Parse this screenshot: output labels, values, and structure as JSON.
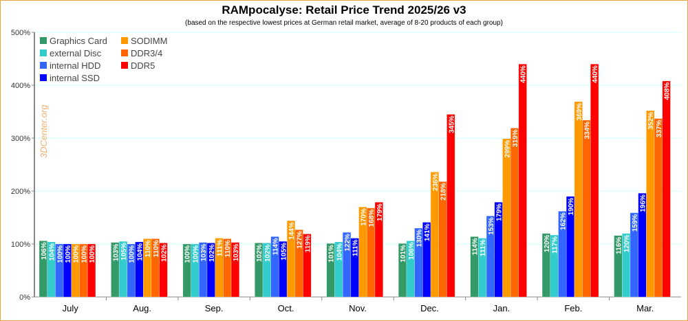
{
  "chart_data": {
    "type": "bar",
    "title": "RAMpocalyse: Retail Price Trend 2025/26 v3",
    "subtitle": "(based on the respective lowest prices at German retail market, average of 8-20 products of each group)",
    "watermark": "3DCenter.org",
    "categories": [
      "July",
      "Aug.",
      "Sep.",
      "Oct.",
      "Nov.",
      "Dec.",
      "Jan.",
      "Feb.",
      "Mar."
    ],
    "ylim": [
      0,
      500
    ],
    "yticks": [
      "0%",
      "100%",
      "200%",
      "300%",
      "400%",
      "500%"
    ],
    "grid": true,
    "legend_position": "top-left",
    "series": [
      {
        "name": "Graphics Card",
        "color": "#339966",
        "values": [
          106,
          103,
          100,
          102,
          101,
          101,
          114,
          120,
          116
        ]
      },
      {
        "name": "external Disc",
        "color": "#33CCCC",
        "values": [
          104,
          105,
          100,
          102,
          104,
          106,
          111,
          117,
          120
        ]
      },
      {
        "name": "internal HDD",
        "color": "#3366FF",
        "values": [
          100,
          100,
          103,
          114,
          122,
          130,
          153,
          162,
          159
        ]
      },
      {
        "name": "internal SSD",
        "color": "#0000FF",
        "values": [
          100,
          104,
          102,
          105,
          111,
          141,
          179,
          190,
          196
        ]
      },
      {
        "name": "SODIMM",
        "color": "#FF9900",
        "values": [
          100,
          110,
          111,
          144,
          170,
          236,
          299,
          369,
          352
        ]
      },
      {
        "name": "DDR3/4",
        "color": "#FF6600",
        "values": [
          100,
          110,
          110,
          127,
          168,
          218,
          319,
          334,
          337
        ]
      },
      {
        "name": "DDR5",
        "color": "#FF0000",
        "values": [
          100,
          102,
          103,
          119,
          179,
          345,
          440,
          440,
          408
        ]
      }
    ]
  }
}
